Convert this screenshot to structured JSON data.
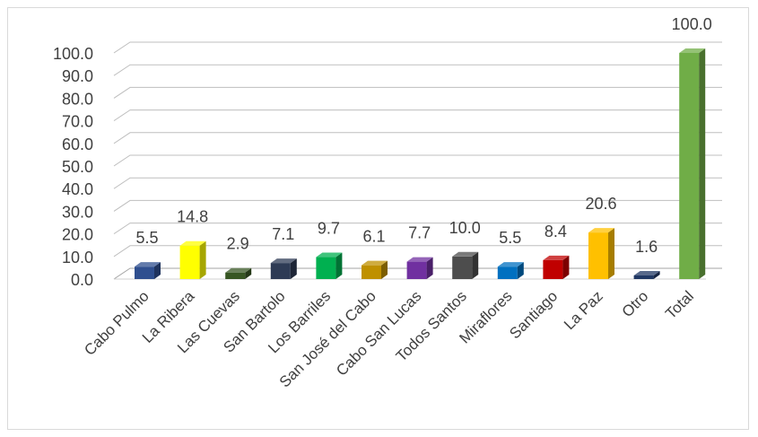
{
  "chart_data": {
    "type": "bar",
    "title": "",
    "xlabel": "",
    "ylabel": "",
    "ylim": [
      0,
      100
    ],
    "yticks": [
      "0.0",
      "10.0",
      "20.0",
      "30.0",
      "40.0",
      "50.0",
      "60.0",
      "70.0",
      "80.0",
      "90.0",
      "100.0"
    ],
    "grid": true,
    "three_d": true,
    "categories": [
      "Cabo Pulmo",
      "La Ribera",
      "Las Cuevas",
      "San Bartolo",
      "Los Barriles",
      "San José del Cabo",
      "Cabo San Lucas",
      "Todos Santos",
      "Miraflores",
      "Santiago",
      "La Paz",
      "Otro",
      "Total"
    ],
    "values": [
      5.5,
      14.8,
      2.9,
      7.1,
      9.7,
      6.1,
      7.7,
      10.0,
      5.5,
      8.4,
      20.6,
      1.6,
      100.0
    ],
    "value_labels": [
      "5.5",
      "14.8",
      "2.9",
      "7.1",
      "9.7",
      "6.1",
      "7.7",
      "10.0",
      "5.5",
      "8.4",
      "20.6",
      "1.6",
      "100.0"
    ],
    "colors": [
      "#2f4f8f",
      "#ffff00",
      "#375623",
      "#2e3b55",
      "#00b050",
      "#bf9000",
      "#7030a0",
      "#4d4d4d",
      "#0070c0",
      "#c00000",
      "#ffc000",
      "#203864",
      "#70ad47"
    ]
  }
}
